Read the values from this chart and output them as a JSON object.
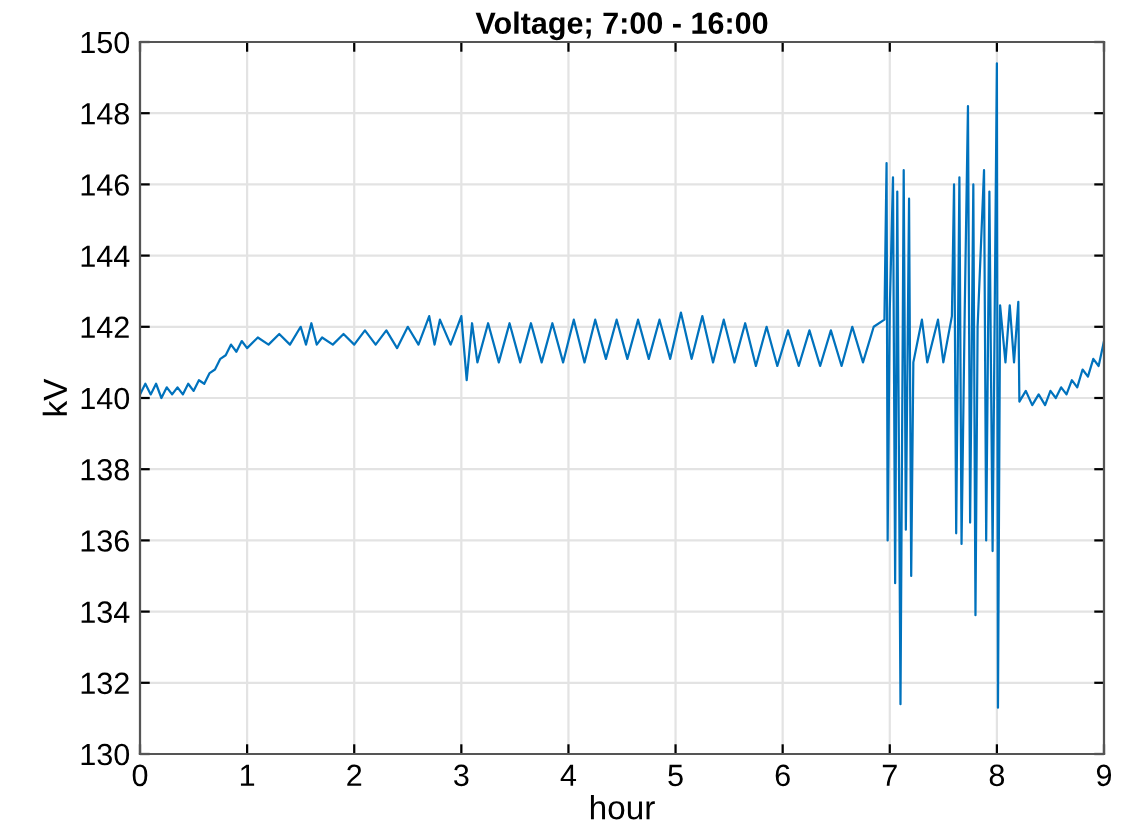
{
  "chart_data": {
    "type": "line",
    "title": "Voltage; 7:00 - 16:00",
    "xlabel": "hour",
    "ylabel": "kV",
    "xlim": [
      0,
      9
    ],
    "xticks": [
      0,
      1,
      2,
      3,
      4,
      5,
      6,
      7,
      8,
      9
    ],
    "ylim": [
      130,
      150
    ],
    "yticks": [
      130,
      132,
      134,
      136,
      138,
      140,
      142,
      144,
      146,
      148,
      150
    ],
    "grid": true,
    "line_style": "solid",
    "x": [
      0,
      0.05,
      0.1,
      0.15,
      0.2,
      0.25,
      0.3,
      0.35,
      0.4,
      0.45,
      0.5,
      0.55,
      0.6,
      0.65,
      0.7,
      0.75,
      0.8,
      0.85,
      0.9,
      0.95,
      1.0,
      1.1,
      1.2,
      1.3,
      1.4,
      1.5,
      1.55,
      1.6,
      1.65,
      1.7,
      1.8,
      1.9,
      2.0,
      2.1,
      2.2,
      2.3,
      2.4,
      2.5,
      2.6,
      2.7,
      2.75,
      2.8,
      2.9,
      3.0,
      3.05,
      3.1,
      3.15,
      3.25,
      3.35,
      3.45,
      3.55,
      3.65,
      3.75,
      3.85,
      3.95,
      4.05,
      4.15,
      4.25,
      4.35,
      4.45,
      4.55,
      4.65,
      4.75,
      4.85,
      4.95,
      5.05,
      5.15,
      5.25,
      5.35,
      5.45,
      5.55,
      5.65,
      5.75,
      5.85,
      5.95,
      6.05,
      6.15,
      6.25,
      6.35,
      6.45,
      6.55,
      6.65,
      6.75,
      6.85,
      6.95,
      6.97,
      6.98,
      7.0,
      7.03,
      7.05,
      7.07,
      7.1,
      7.13,
      7.15,
      7.18,
      7.2,
      7.22,
      7.3,
      7.35,
      7.45,
      7.5,
      7.58,
      7.6,
      7.62,
      7.65,
      7.67,
      7.7,
      7.73,
      7.75,
      7.78,
      7.8,
      7.82,
      7.88,
      7.9,
      7.93,
      7.96,
      8.0,
      8.01,
      8.03,
      8.08,
      8.12,
      8.16,
      8.2,
      8.21,
      8.27,
      8.33,
      8.39,
      8.45,
      8.5,
      8.55,
      8.6,
      8.65,
      8.7,
      8.75,
      8.8,
      8.85,
      8.9,
      8.95,
      9.0
    ],
    "series": [
      {
        "color": "#0072bd",
        "values": [
          140.1,
          140.4,
          140.1,
          140.4,
          140.0,
          140.3,
          140.1,
          140.3,
          140.1,
          140.4,
          140.2,
          140.5,
          140.4,
          140.7,
          140.8,
          141.1,
          141.2,
          141.5,
          141.3,
          141.6,
          141.4,
          141.7,
          141.5,
          141.8,
          141.5,
          142.0,
          141.5,
          142.1,
          141.5,
          141.7,
          141.5,
          141.8,
          141.5,
          141.9,
          141.5,
          141.9,
          141.4,
          142.0,
          141.5,
          142.3,
          141.5,
          142.2,
          141.5,
          142.3,
          140.5,
          142.1,
          141.0,
          142.1,
          141.0,
          142.1,
          141.0,
          142.1,
          141.0,
          142.1,
          141.0,
          142.2,
          141.0,
          142.2,
          141.1,
          142.2,
          141.1,
          142.2,
          141.1,
          142.2,
          141.1,
          142.4,
          141.1,
          142.3,
          141.0,
          142.2,
          141.0,
          142.1,
          140.9,
          142.0,
          140.9,
          141.9,
          140.9,
          141.9,
          140.9,
          141.9,
          140.9,
          142.0,
          141.0,
          142.0,
          142.2,
          146.6,
          136.0,
          142.5,
          146.2,
          134.8,
          145.8,
          131.4,
          146.4,
          136.3,
          145.6,
          135.0,
          141.0,
          142.2,
          141.0,
          142.2,
          141.0,
          142.3,
          146.0,
          136.2,
          146.2,
          135.9,
          142.5,
          148.2,
          136.5,
          146.0,
          133.9,
          142.0,
          146.4,
          136.0,
          145.8,
          135.7,
          149.4,
          131.3,
          142.6,
          141.0,
          142.6,
          141.0,
          142.7,
          139.9,
          140.2,
          139.8,
          140.1,
          139.8,
          140.2,
          140.0,
          140.3,
          140.1,
          140.5,
          140.3,
          140.8,
          140.6,
          141.1,
          140.9,
          141.6
        ]
      }
    ]
  }
}
